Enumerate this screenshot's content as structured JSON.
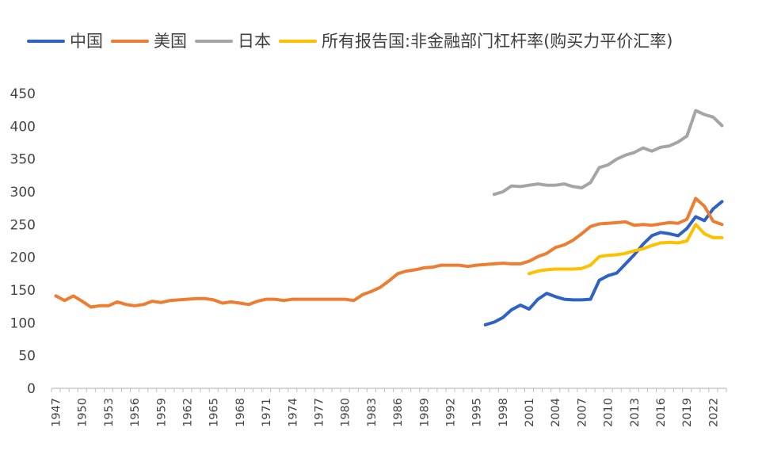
{
  "chart_data": {
    "type": "line",
    "title": "",
    "xlabel": "",
    "ylabel": "",
    "xlim": [
      1947,
      2023
    ],
    "ylim": [
      0,
      450
    ],
    "yticks": [
      0,
      50,
      100,
      150,
      200,
      250,
      300,
      350,
      400,
      450
    ],
    "xticks": [
      1947,
      1950,
      1953,
      1956,
      1959,
      1962,
      1965,
      1968,
      1971,
      1974,
      1977,
      1980,
      1983,
      1986,
      1989,
      1992,
      1995,
      1998,
      2001,
      2004,
      2007,
      2010,
      2013,
      2016,
      2019,
      2022
    ],
    "grid": false,
    "legend_position": "top",
    "series": [
      {
        "name": "中国",
        "color": "#2e62c5",
        "x": [
          1996,
          1997,
          1998,
          1999,
          2000,
          2001,
          2002,
          2003,
          2004,
          2005,
          2006,
          2007,
          2008,
          2009,
          2010,
          2011,
          2012,
          2013,
          2014,
          2015,
          2016,
          2017,
          2018,
          2019,
          2020,
          2021,
          2022,
          2023
        ],
        "y": [
          97,
          101,
          108,
          120,
          127,
          121,
          136,
          145,
          140,
          136,
          135,
          135,
          136,
          165,
          172,
          176,
          190,
          204,
          220,
          233,
          238,
          236,
          233,
          244,
          262,
          256,
          274,
          285
        ]
      },
      {
        "name": "美国",
        "color": "#ed7d31",
        "x": [
          1947,
          1948,
          1949,
          1950,
          1951,
          1952,
          1953,
          1954,
          1955,
          1956,
          1957,
          1958,
          1959,
          1960,
          1961,
          1962,
          1963,
          1964,
          1965,
          1966,
          1967,
          1968,
          1969,
          1970,
          1971,
          1972,
          1973,
          1974,
          1975,
          1976,
          1977,
          1978,
          1979,
          1980,
          1981,
          1982,
          1983,
          1984,
          1985,
          1986,
          1987,
          1988,
          1989,
          1990,
          1991,
          1992,
          1993,
          1994,
          1995,
          1996,
          1997,
          1998,
          1999,
          2000,
          2001,
          2002,
          2003,
          2004,
          2005,
          2006,
          2007,
          2008,
          2009,
          2010,
          2011,
          2012,
          2013,
          2014,
          2015,
          2016,
          2017,
          2018,
          2019,
          2020,
          2021,
          2022,
          2023
        ],
        "y": [
          141,
          134,
          141,
          133,
          124,
          126,
          126,
          132,
          128,
          126,
          128,
          133,
          131,
          134,
          135,
          136,
          137,
          137,
          135,
          130,
          132,
          130,
          128,
          133,
          136,
          136,
          134,
          136,
          136,
          136,
          136,
          136,
          136,
          136,
          134,
          143,
          148,
          154,
          164,
          175,
          179,
          181,
          184,
          185,
          188,
          188,
          188,
          186,
          188,
          189,
          190,
          191,
          190,
          190,
          194,
          201,
          206,
          215,
          219,
          226,
          236,
          247,
          251,
          252,
          253,
          254,
          249,
          250,
          249,
          251,
          253,
          252,
          258,
          290,
          278,
          255,
          250
        ]
      },
      {
        "name": "日本",
        "color": "#a5a5a5",
        "x": [
          1997,
          1998,
          1999,
          2000,
          2001,
          2002,
          2003,
          2004,
          2005,
          2006,
          2007,
          2008,
          2009,
          2010,
          2011,
          2012,
          2013,
          2014,
          2015,
          2016,
          2017,
          2018,
          2019,
          2020,
          2021,
          2022,
          2023
        ],
        "y": [
          296,
          300,
          309,
          308,
          310,
          312,
          310,
          310,
          312,
          308,
          306,
          314,
          337,
          341,
          350,
          356,
          360,
          367,
          362,
          368,
          370,
          376,
          385,
          424,
          418,
          414,
          401
        ]
      },
      {
        "name": "所有报告国:非金融部门杠杆率(购买力平价汇率)",
        "color": "#ffc000",
        "x": [
          2001,
          2002,
          2003,
          2004,
          2005,
          2006,
          2007,
          2008,
          2009,
          2010,
          2011,
          2012,
          2013,
          2014,
          2015,
          2016,
          2017,
          2018,
          2019,
          2020,
          2021,
          2022,
          2023
        ],
        "y": [
          175,
          179,
          181,
          182,
          182,
          182,
          183,
          188,
          201,
          203,
          204,
          206,
          210,
          213,
          218,
          222,
          223,
          222,
          225,
          250,
          236,
          230,
          230
        ]
      }
    ]
  }
}
